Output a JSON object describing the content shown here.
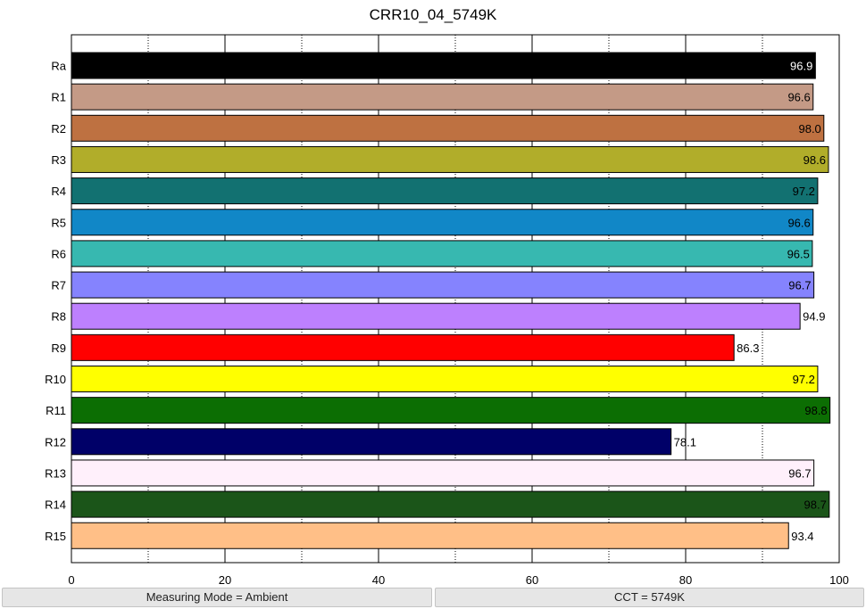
{
  "chart_data": {
    "type": "bar",
    "orientation": "horizontal",
    "title": "CRR10_04_5749K",
    "xlabel": "",
    "ylabel": "",
    "xlim": [
      0,
      100
    ],
    "x_ticks": [
      0,
      20,
      40,
      60,
      80,
      100
    ],
    "minor_gridlines": [
      10,
      30,
      50,
      70,
      90
    ],
    "grid": true,
    "categories": [
      "Ra",
      "R1",
      "R2",
      "R3",
      "R4",
      "R5",
      "R6",
      "R7",
      "R8",
      "R9",
      "R10",
      "R11",
      "R12",
      "R13",
      "R14",
      "R15"
    ],
    "values": [
      96.9,
      96.6,
      98.0,
      98.6,
      97.2,
      96.6,
      96.5,
      96.7,
      94.9,
      86.3,
      97.2,
      98.8,
      78.1,
      96.7,
      98.7,
      93.4
    ],
    "value_labels": [
      "96.9",
      "96.6",
      "98.0",
      "98.6",
      "97.2",
      "96.6",
      "96.5",
      "96.7",
      "94.9",
      "86.3",
      "97.2",
      "98.8",
      "78.1",
      "96.7",
      "98.7",
      "93.4"
    ],
    "colors": [
      "#000000",
      "#c49a86",
      "#be7141",
      "#b1ad2a",
      "#127171",
      "#1187c7",
      "#37b8b0",
      "#8583fe",
      "#bd80fe",
      "#ff0000",
      "#ffff00",
      "#0c6e03",
      "#000068",
      "#fff0fb",
      "#1b5519",
      "#ffbf87"
    ],
    "label_colors": [
      "#ffffff",
      "#000000",
      "#000000",
      "#000000",
      "#000000",
      "#000000",
      "#000000",
      "#000000",
      "#000000",
      "#000000",
      "#000000",
      "#000000",
      "#000000",
      "#000000",
      "#000000",
      "#000000"
    ]
  },
  "status": {
    "left": "Measuring Mode = Ambient",
    "right": "CCT = 5749K"
  }
}
